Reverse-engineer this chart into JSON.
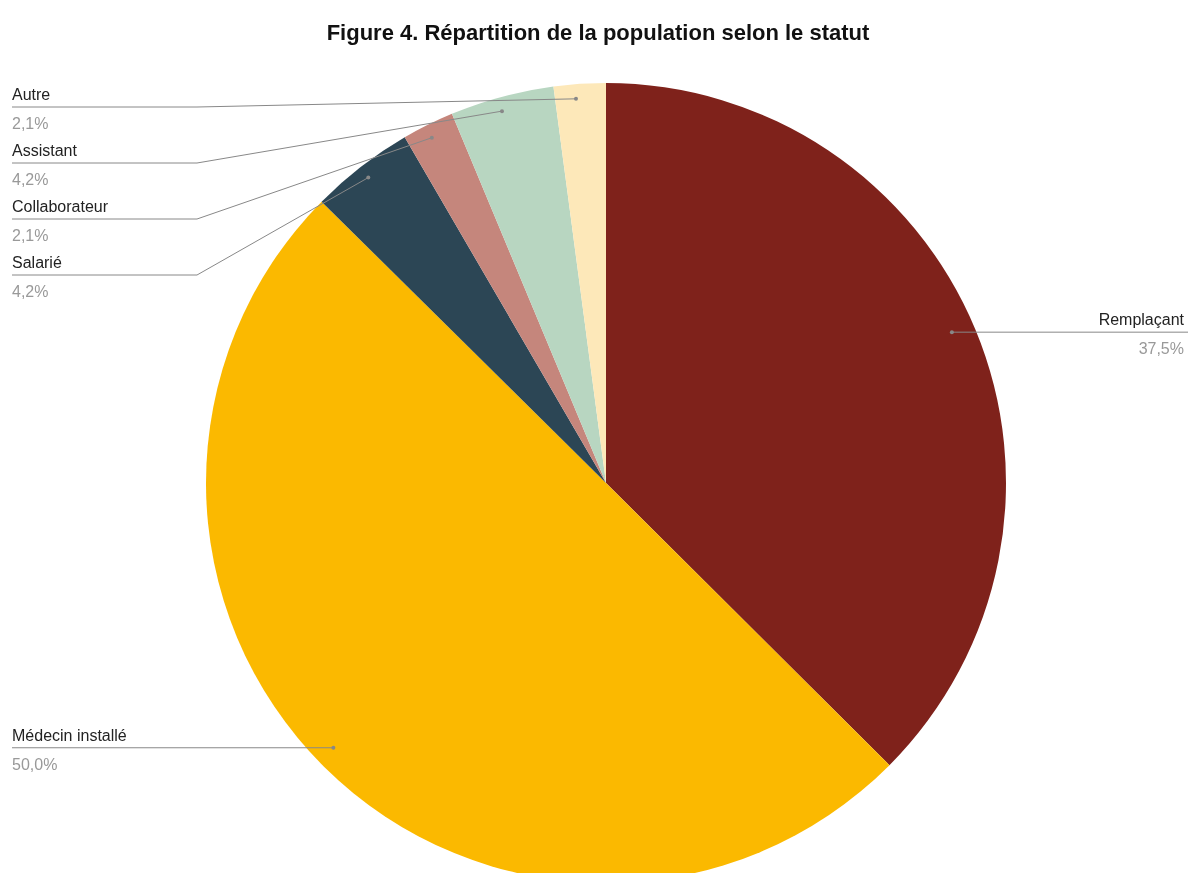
{
  "chart_data": {
    "type": "pie",
    "title": "Figure 4. Répartition de la population selon le statut",
    "categories": [
      "Remplaçant",
      "Médecin installé",
      "Salarié",
      "Collaborateur",
      "Assistant",
      "Autre"
    ],
    "values": [
      37.5,
      50.0,
      4.2,
      2.1,
      4.2,
      2.1
    ],
    "colors": [
      "#7f221b",
      "#fbb900",
      "#2c4655",
      "#c5867c",
      "#b8d6c1",
      "#fde8b9"
    ],
    "value_labels": [
      "37,5%",
      "50,0%",
      "4,2%",
      "2,1%",
      "4,2%",
      "2,1%"
    ]
  }
}
